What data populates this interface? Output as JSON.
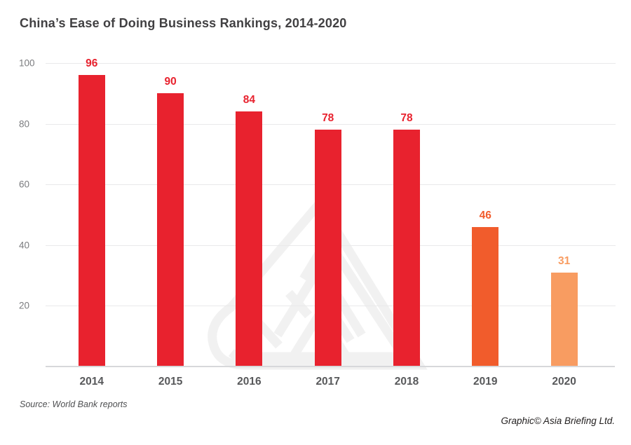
{
  "title": "China’s Ease of Doing Business Rankings, 2014-2020",
  "source_note": "Source: World Bank reports",
  "credit": "Graphic© Asia Briefing Ltd.",
  "colors": {
    "bar_red": "#E8222E",
    "bar_orange_2019": "#F15C2C",
    "bar_orange_2020": "#F89C61",
    "title_text": "#414042",
    "y_tick_text": "#7B7C7F",
    "x_label_text": "#58595B",
    "gridline": "#E9E9EA",
    "axis_line": "#D7D8DA",
    "watermark": "#F1F1F1"
  },
  "chart_data": {
    "type": "bar",
    "title": "China’s Ease of Doing Business Rankings, 2014-2020",
    "categories": [
      "2014",
      "2015",
      "2016",
      "2017",
      "2018",
      "2019",
      "2020"
    ],
    "values": [
      96,
      90,
      84,
      78,
      78,
      46,
      31
    ],
    "bar_colors": [
      "#E8222E",
      "#E8222E",
      "#E8222E",
      "#E8222E",
      "#E8222E",
      "#F15C2C",
      "#F89C61"
    ],
    "data_labels": [
      "96",
      "90",
      "84",
      "78",
      "78",
      "46",
      "31"
    ],
    "xlabel": "",
    "ylabel": "",
    "ylim": [
      0,
      100
    ],
    "yticks": [
      20,
      40,
      60,
      80,
      100
    ],
    "grid": true,
    "legend": false
  }
}
